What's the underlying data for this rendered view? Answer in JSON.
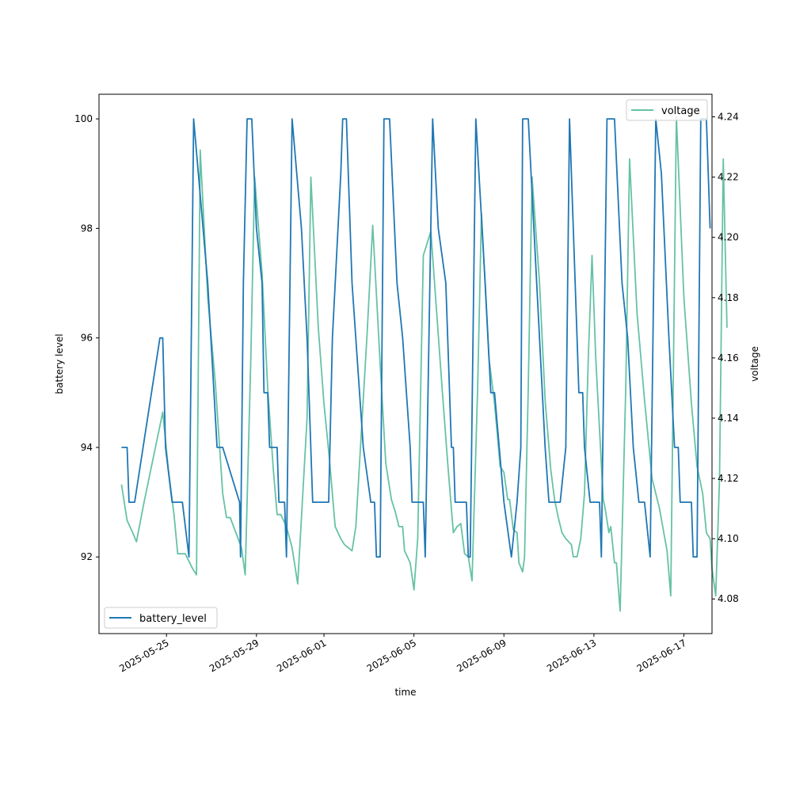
{
  "chart_data": {
    "type": "line",
    "xlabel": "time",
    "x_tick_labels": [
      "2025-05-25",
      "2025-05-29",
      "2025-06-01",
      "2025-06-05",
      "2025-06-09",
      "2025-06-13",
      "2025-06-17"
    ],
    "x_tick_dates": [
      "2025-05-25",
      "2025-05-29",
      "2025-06-01",
      "2025-06-05",
      "2025-06-09",
      "2025-06-13",
      "2025-06-17"
    ],
    "xlim": [
      "2025-05-22T00:00",
      "2025-06-18T06:00"
    ],
    "y_left": {
      "label": "battery level",
      "ticks": [
        92,
        94,
        96,
        98,
        100
      ],
      "tick_labels": [
        "92",
        "94",
        "96",
        "98",
        "100"
      ],
      "ylim": [
        90.6,
        100.45
      ]
    },
    "y_right": {
      "label": "voltage",
      "ticks": [
        4.08,
        4.1,
        4.12,
        4.14,
        4.16,
        4.18,
        4.2,
        4.22,
        4.24
      ],
      "tick_labels": [
        "4.08",
        "4.10",
        "4.12",
        "4.14",
        "4.16",
        "4.18",
        "4.20",
        "4.22",
        "4.24"
      ],
      "ylim": [
        4.0685,
        4.2475
      ]
    },
    "legend_left": {
      "placement": "lower-left"
    },
    "legend_right": {
      "placement": "upper-right"
    },
    "series": [
      {
        "name": "battery_level",
        "axis": "left",
        "color": "#1f77b4",
        "points": [
          [
            "2025-05-23T00:00",
            94
          ],
          [
            "2025-05-23T06:00",
            94
          ],
          [
            "2025-05-23T08:00",
            93
          ],
          [
            "2025-05-23T14:00",
            93
          ],
          [
            "2025-05-24T17:00",
            96
          ],
          [
            "2025-05-24T20:00",
            96
          ],
          [
            "2025-05-24T23:00",
            94
          ],
          [
            "2025-05-25T06:00",
            93
          ],
          [
            "2025-05-25T17:00",
            93
          ],
          [
            "2025-05-26T00:00",
            92
          ],
          [
            "2025-05-26T05:00",
            100
          ],
          [
            "2025-05-26T15:00",
            98
          ],
          [
            "2025-05-26T20:00",
            97
          ],
          [
            "2025-05-27T06:00",
            94
          ],
          [
            "2025-05-27T12:00",
            94
          ],
          [
            "2025-05-28T06:00",
            93
          ],
          [
            "2025-05-28T07:00",
            92
          ],
          [
            "2025-05-28T10:00",
            97
          ],
          [
            "2025-05-28T14:00",
            100
          ],
          [
            "2025-05-28T19:00",
            100
          ],
          [
            "2025-05-29T00:00",
            98
          ],
          [
            "2025-05-29T06:00",
            97
          ],
          [
            "2025-05-29T08:00",
            95
          ],
          [
            "2025-05-29T12:00",
            95
          ],
          [
            "2025-05-29T14:00",
            94
          ],
          [
            "2025-05-29T22:00",
            94
          ],
          [
            "2025-05-30T00:00",
            93
          ],
          [
            "2025-05-30T06:00",
            93
          ],
          [
            "2025-05-30T08:00",
            92
          ],
          [
            "2025-05-30T14:00",
            100
          ],
          [
            "2025-05-31T00:00",
            98
          ],
          [
            "2025-05-31T06:00",
            96
          ],
          [
            "2025-05-31T12:00",
            93
          ],
          [
            "2025-06-01T05:00",
            93
          ],
          [
            "2025-06-01T09:00",
            96
          ],
          [
            "2025-06-01T18:00",
            99
          ],
          [
            "2025-06-01T20:00",
            100
          ],
          [
            "2025-06-02T00:00",
            100
          ],
          [
            "2025-06-02T06:00",
            97
          ],
          [
            "2025-06-02T18:00",
            94
          ],
          [
            "2025-06-03T02:00",
            93
          ],
          [
            "2025-06-03T06:00",
            93
          ],
          [
            "2025-06-03T08:00",
            92
          ],
          [
            "2025-06-03T12:00",
            92
          ],
          [
            "2025-06-03T16:00",
            100
          ],
          [
            "2025-06-03T22:00",
            100
          ],
          [
            "2025-06-04T06:00",
            97
          ],
          [
            "2025-06-04T12:00",
            96
          ],
          [
            "2025-06-04T20:00",
            94
          ],
          [
            "2025-06-04T22:00",
            93
          ],
          [
            "2025-06-05T10:00",
            93
          ],
          [
            "2025-06-05T12:00",
            92
          ],
          [
            "2025-06-05T20:00",
            100
          ],
          [
            "2025-06-06T02:00",
            98
          ],
          [
            "2025-06-06T10:00",
            97
          ],
          [
            "2025-06-06T16:00",
            94
          ],
          [
            "2025-06-06T18:00",
            94
          ],
          [
            "2025-06-06T20:00",
            93
          ],
          [
            "2025-06-07T08:00",
            93
          ],
          [
            "2025-06-07T10:00",
            92
          ],
          [
            "2025-06-07T12:00",
            92
          ],
          [
            "2025-06-07T18:00",
            100
          ],
          [
            "2025-06-08T04:00",
            97
          ],
          [
            "2025-06-08T10:00",
            95
          ],
          [
            "2025-06-08T14:00",
            95
          ],
          [
            "2025-06-09T00:00",
            93
          ],
          [
            "2025-06-09T08:00",
            92
          ],
          [
            "2025-06-09T14:00",
            93
          ],
          [
            "2025-06-09T18:00",
            94
          ],
          [
            "2025-06-09T20:00",
            100
          ],
          [
            "2025-06-10T02:00",
            100
          ],
          [
            "2025-06-10T08:00",
            98
          ],
          [
            "2025-06-10T14:00",
            96
          ],
          [
            "2025-06-10T20:00",
            94
          ],
          [
            "2025-06-11T00:00",
            93
          ],
          [
            "2025-06-11T12:00",
            93
          ],
          [
            "2025-06-11T18:00",
            94
          ],
          [
            "2025-06-11T22:00",
            100
          ],
          [
            "2025-06-12T06:00",
            96
          ],
          [
            "2025-06-12T08:00",
            95
          ],
          [
            "2025-06-12T12:00",
            95
          ],
          [
            "2025-06-12T14:00",
            94
          ],
          [
            "2025-06-12T20:00",
            93
          ],
          [
            "2025-06-13T06:00",
            93
          ],
          [
            "2025-06-13T08:00",
            92
          ],
          [
            "2025-06-13T14:00",
            100
          ],
          [
            "2025-06-13T22:00",
            100
          ],
          [
            "2025-06-14T06:00",
            97
          ],
          [
            "2025-06-14T12:00",
            96
          ],
          [
            "2025-06-14T18:00",
            94
          ],
          [
            "2025-06-15T00:00",
            93
          ],
          [
            "2025-06-15T06:00",
            93
          ],
          [
            "2025-06-15T12:00",
            92
          ],
          [
            "2025-06-15T18:00",
            100
          ],
          [
            "2025-06-16T00:00",
            99
          ],
          [
            "2025-06-16T08:00",
            96
          ],
          [
            "2025-06-16T14:00",
            94
          ],
          [
            "2025-06-16T18:00",
            94
          ],
          [
            "2025-06-16T20:00",
            93
          ],
          [
            "2025-06-17T08:00",
            93
          ],
          [
            "2025-06-17T10:00",
            92
          ],
          [
            "2025-06-17T14:00",
            92
          ],
          [
            "2025-06-17T18:00",
            100
          ],
          [
            "2025-06-18T00:00",
            100
          ],
          [
            "2025-06-18T04:00",
            98
          ]
        ]
      },
      {
        "name": "voltage",
        "axis": "right",
        "color": "#66c2a5",
        "points": [
          [
            "2025-05-23T00:00",
            4.118
          ],
          [
            "2025-05-23T06:00",
            4.106
          ],
          [
            "2025-05-23T12:00",
            4.102
          ],
          [
            "2025-05-23T16:00",
            4.099
          ],
          [
            "2025-05-24T00:00",
            4.112
          ],
          [
            "2025-05-24T12:00",
            4.13
          ],
          [
            "2025-05-24T20:00",
            4.142
          ],
          [
            "2025-05-25T02:00",
            4.123
          ],
          [
            "2025-05-25T08:00",
            4.108
          ],
          [
            "2025-05-25T12:00",
            4.095
          ],
          [
            "2025-05-25T20:00",
            4.095
          ],
          [
            "2025-05-26T04:00",
            4.09
          ],
          [
            "2025-05-26T08:00",
            4.088
          ],
          [
            "2025-05-26T12:00",
            4.229
          ],
          [
            "2025-05-26T20:00",
            4.18
          ],
          [
            "2025-05-27T04:00",
            4.152
          ],
          [
            "2025-05-27T12:00",
            4.115
          ],
          [
            "2025-05-27T16:00",
            4.107
          ],
          [
            "2025-05-27T20:00",
            4.107
          ],
          [
            "2025-05-28T08:00",
            4.097
          ],
          [
            "2025-05-28T12:00",
            4.088
          ],
          [
            "2025-05-28T18:00",
            4.16
          ],
          [
            "2025-05-28T22:00",
            4.22
          ],
          [
            "2025-05-29T06:00",
            4.188
          ],
          [
            "2025-05-29T12:00",
            4.15
          ],
          [
            "2025-05-29T18:00",
            4.123
          ],
          [
            "2025-05-29T22:00",
            4.108
          ],
          [
            "2025-05-30T02:00",
            4.108
          ],
          [
            "2025-05-30T08:00",
            4.104
          ],
          [
            "2025-05-30T14:00",
            4.097
          ],
          [
            "2025-05-30T20:00",
            4.085
          ],
          [
            "2025-05-31T06:00",
            4.14
          ],
          [
            "2025-05-31T10:00",
            4.22
          ],
          [
            "2025-05-31T18:00",
            4.17
          ],
          [
            "2025-06-01T00:00",
            4.145
          ],
          [
            "2025-06-01T06:00",
            4.126
          ],
          [
            "2025-06-01T12:00",
            4.104
          ],
          [
            "2025-06-01T18:00",
            4.1
          ],
          [
            "2025-06-01T22:00",
            4.098
          ],
          [
            "2025-06-02T06:00",
            4.096
          ],
          [
            "2025-06-02T10:00",
            4.104
          ],
          [
            "2025-06-02T22:00",
            4.168
          ],
          [
            "2025-06-03T04:00",
            4.204
          ],
          [
            "2025-06-03T12:00",
            4.158
          ],
          [
            "2025-06-03T18:00",
            4.125
          ],
          [
            "2025-06-04T00:00",
            4.113
          ],
          [
            "2025-06-04T04:00",
            4.109
          ],
          [
            "2025-06-04T08:00",
            4.104
          ],
          [
            "2025-06-04T12:00",
            4.104
          ],
          [
            "2025-06-04T14:00",
            4.096
          ],
          [
            "2025-06-04T20:00",
            4.092
          ],
          [
            "2025-06-05T00:00",
            4.083
          ],
          [
            "2025-06-05T04:00",
            4.1
          ],
          [
            "2025-06-05T10:00",
            4.194
          ],
          [
            "2025-06-05T18:00",
            4.202
          ],
          [
            "2025-06-06T06:00",
            4.15
          ],
          [
            "2025-06-06T12:00",
            4.125
          ],
          [
            "2025-06-06T18:00",
            4.102
          ],
          [
            "2025-06-06T22:00",
            4.104
          ],
          [
            "2025-06-07T02:00",
            4.105
          ],
          [
            "2025-06-07T06:00",
            4.095
          ],
          [
            "2025-06-07T10:00",
            4.094
          ],
          [
            "2025-06-07T14:00",
            4.086
          ],
          [
            "2025-06-07T20:00",
            4.15
          ],
          [
            "2025-06-08T00:00",
            4.208
          ],
          [
            "2025-06-08T08:00",
            4.16
          ],
          [
            "2025-06-08T14:00",
            4.145
          ],
          [
            "2025-06-08T20:00",
            4.124
          ],
          [
            "2025-06-09T00:00",
            4.122
          ],
          [
            "2025-06-09T04:00",
            4.113
          ],
          [
            "2025-06-09T06:00",
            4.113
          ],
          [
            "2025-06-09T10:00",
            4.103
          ],
          [
            "2025-06-09T14:00",
            4.102
          ],
          [
            "2025-06-09T16:00",
            4.092
          ],
          [
            "2025-06-09T20:00",
            4.089
          ],
          [
            "2025-06-09T22:00",
            4.094
          ],
          [
            "2025-06-10T02:00",
            4.15
          ],
          [
            "2025-06-10T06:00",
            4.22
          ],
          [
            "2025-06-10T14:00",
            4.185
          ],
          [
            "2025-06-10T20:00",
            4.146
          ],
          [
            "2025-06-11T02:00",
            4.123
          ],
          [
            "2025-06-11T06:00",
            4.113
          ],
          [
            "2025-06-11T10:00",
            4.107
          ],
          [
            "2025-06-11T14:00",
            4.102
          ],
          [
            "2025-06-11T18:00",
            4.1
          ],
          [
            "2025-06-12T00:00",
            4.098
          ],
          [
            "2025-06-12T02:00",
            4.094
          ],
          [
            "2025-06-12T06:00",
            4.094
          ],
          [
            "2025-06-12T10:00",
            4.1
          ],
          [
            "2025-06-12T14:00",
            4.115
          ],
          [
            "2025-06-12T18:00",
            4.16
          ],
          [
            "2025-06-12T22:00",
            4.194
          ],
          [
            "2025-06-13T02:00",
            4.16
          ],
          [
            "2025-06-13T06:00",
            4.136
          ],
          [
            "2025-06-13T10:00",
            4.113
          ],
          [
            "2025-06-13T12:00",
            4.11
          ],
          [
            "2025-06-13T16:00",
            4.102
          ],
          [
            "2025-06-13T18:00",
            4.104
          ],
          [
            "2025-06-13T22:00",
            4.092
          ],
          [
            "2025-06-14T00:00",
            4.092
          ],
          [
            "2025-06-14T04:00",
            4.076
          ],
          [
            "2025-06-14T10:00",
            4.15
          ],
          [
            "2025-06-14T14:00",
            4.226
          ],
          [
            "2025-06-14T22:00",
            4.175
          ],
          [
            "2025-06-15T06:00",
            4.146
          ],
          [
            "2025-06-15T14:00",
            4.12
          ],
          [
            "2025-06-15T22:00",
            4.11
          ],
          [
            "2025-06-16T06:00",
            4.096
          ],
          [
            "2025-06-16T10:00",
            4.081
          ],
          [
            "2025-06-16T16:00",
            4.24
          ],
          [
            "2025-06-17T00:00",
            4.18
          ],
          [
            "2025-06-17T08:00",
            4.145
          ],
          [
            "2025-06-17T14:00",
            4.124
          ],
          [
            "2025-06-17T20:00",
            4.115
          ],
          [
            "2025-06-18T00:00",
            4.102
          ],
          [
            "2025-06-18T04:00",
            4.1
          ],
          [
            "2025-06-18T06:00",
            4.09
          ],
          [
            "2025-06-18T10:00",
            4.081
          ],
          [
            "2025-06-18T14:00",
            4.12
          ],
          [
            "2025-06-18T18:00",
            4.226
          ],
          [
            "2025-06-18T22:00",
            4.17
          ]
        ]
      }
    ]
  }
}
